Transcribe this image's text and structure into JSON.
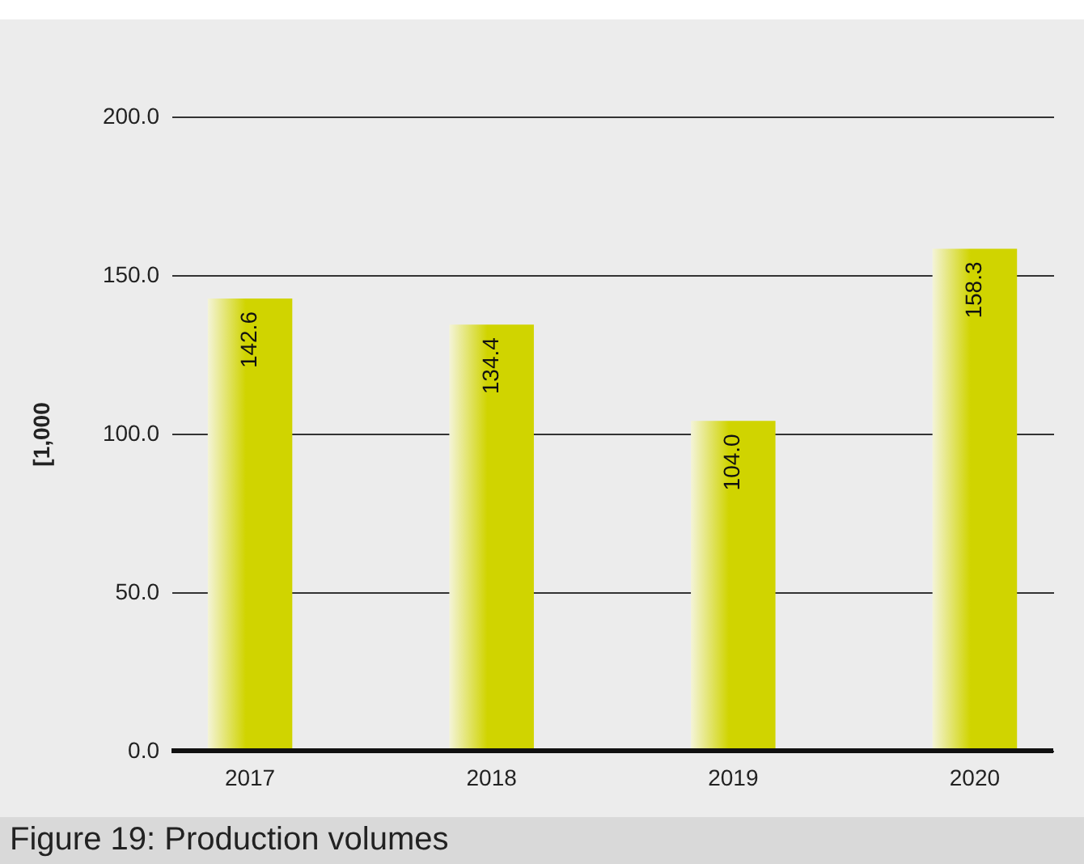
{
  "chart_data": {
    "type": "bar",
    "title": "Figure 19: Production volumes",
    "ylabel": "[1,000",
    "categories": [
      "2017",
      "2018",
      "2019",
      "2020"
    ],
    "values": [
      142.6,
      134.4,
      104.0,
      158.3
    ],
    "value_labels": [
      "142.6",
      "134.4",
      "104.0",
      "158.3"
    ],
    "color": "#d0d400",
    "ylim": [
      0,
      200
    ],
    "yticks": [
      {
        "value": 0,
        "label": "0.0"
      },
      {
        "value": 50,
        "label": "50.0"
      },
      {
        "value": 100,
        "label": "100.0"
      },
      {
        "value": 150,
        "label": "150.0"
      },
      {
        "value": 200,
        "label": "200.0"
      }
    ],
    "grid": "y"
  }
}
